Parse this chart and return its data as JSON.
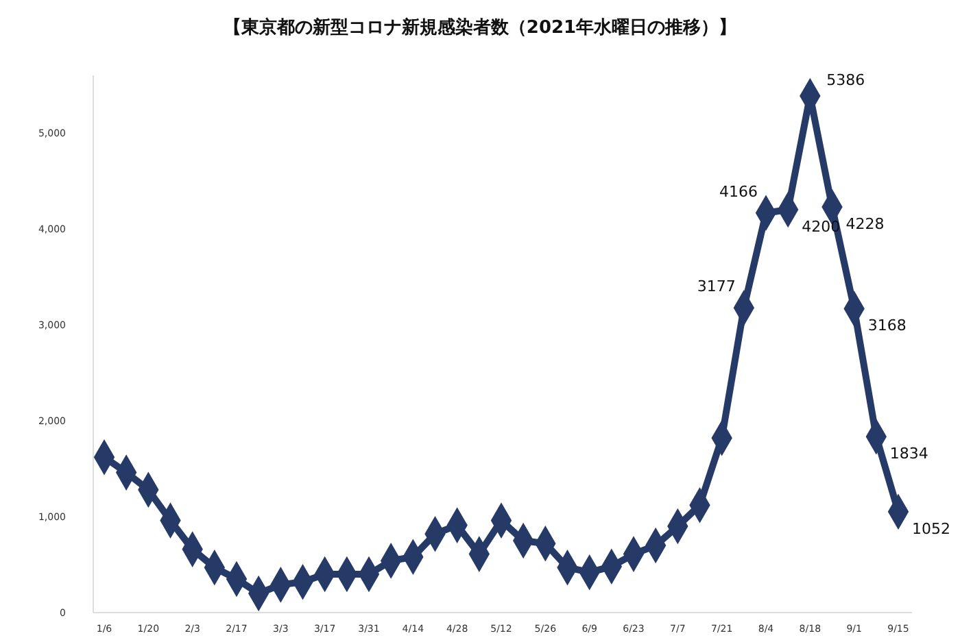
{
  "chart_data": {
    "type": "line",
    "title": "【東京都の新型コロナ新規感染者数（2021年水曜日の推移）】",
    "categories": [
      "1/6",
      null,
      "1/20",
      null,
      "2/3",
      null,
      "2/17",
      null,
      "3/3",
      null,
      "3/17",
      null,
      "3/31",
      null,
      "4/14",
      null,
      "4/28",
      null,
      "5/12",
      null,
      "5/26",
      null,
      "6/9",
      null,
      "6/23",
      null,
      "7/7",
      null,
      "7/21",
      null,
      "8/4",
      null,
      "8/18",
      null,
      "9/1",
      null,
      "9/15"
    ],
    "series": [
      {
        "color": "#253a66",
        "values": [
          1620,
          1460,
          1280,
          960,
          660,
          470,
          350,
          200,
          290,
          320,
          400,
          400,
          400,
          540,
          580,
          820,
          910,
          610,
          960,
          750,
          720,
          470,
          420,
          480,
          610,
          700,
          900,
          1120,
          1820,
          3177,
          4166,
          4200,
          5386,
          4228,
          3168,
          1834,
          1052
        ],
        "value_labels": [
          null,
          null,
          null,
          null,
          null,
          null,
          null,
          null,
          null,
          null,
          null,
          null,
          null,
          null,
          null,
          null,
          null,
          null,
          null,
          null,
          null,
          null,
          null,
          null,
          null,
          null,
          null,
          null,
          null,
          "3177",
          "4166",
          "4200",
          "5386",
          "4228",
          "3168",
          "1834",
          "1052"
        ]
      }
    ],
    "ylim": [
      0,
      5600
    ],
    "yticks": [
      {
        "value": 0,
        "label": "0"
      },
      {
        "value": 1000,
        "label": "1,000"
      },
      {
        "value": 2000,
        "label": "2,000"
      },
      {
        "value": 3000,
        "label": "3,000"
      },
      {
        "value": 4000,
        "label": "4,000"
      },
      {
        "value": 5000,
        "label": "5,000"
      }
    ],
    "marker": "diamond",
    "line_style": "solid"
  }
}
